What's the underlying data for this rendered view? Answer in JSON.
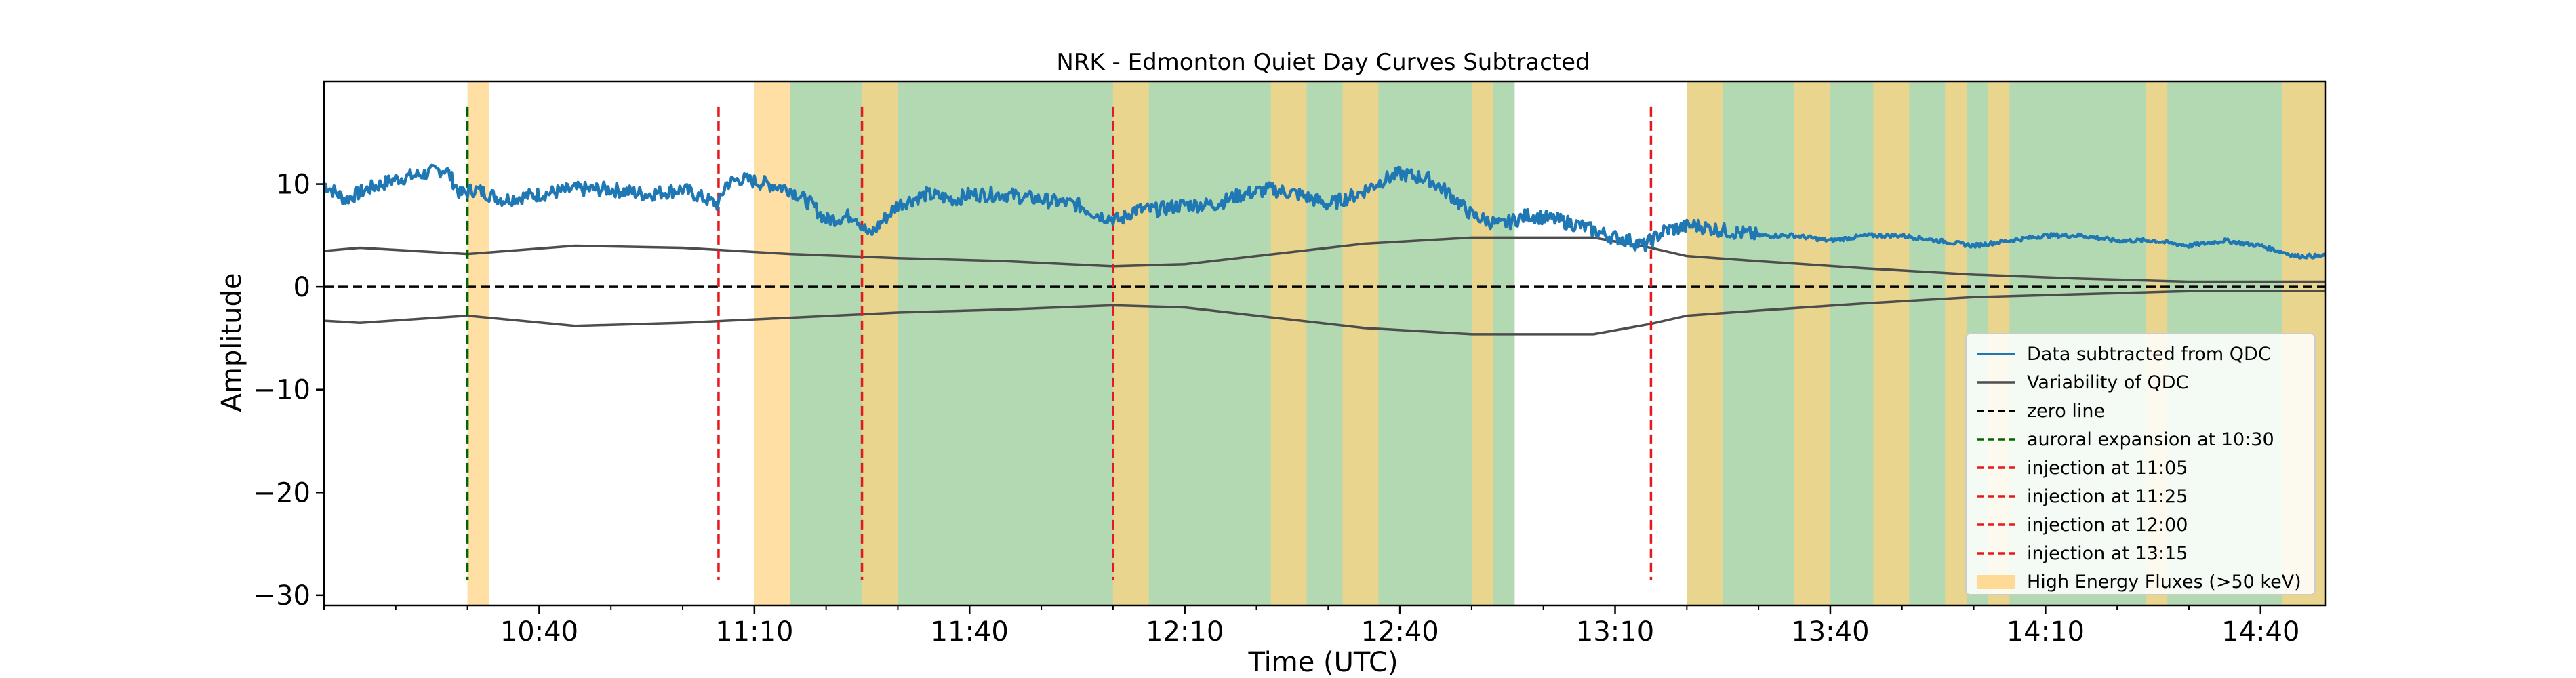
{
  "chart_data": {
    "type": "line",
    "title": "NRK - Edmonton  Quiet Day Curves Subtracted",
    "xlabel": "Time (UTC)",
    "ylabel": "Amplitude",
    "xlim": [
      "10:10",
      "14:49"
    ],
    "ylim": [
      -31,
      20
    ],
    "x_ticks": [
      "10:40",
      "11:10",
      "11:40",
      "12:10",
      "12:40",
      "13:10",
      "13:40",
      "14:10",
      "14:40"
    ],
    "y_ticks": [
      10,
      0,
      -10,
      -20,
      -30
    ],
    "grid": false,
    "legend_position": "lower-right",
    "colors": {
      "data": "#1f77b4",
      "variability": "#4d4d4d",
      "zero": "#000000",
      "expansion": "#006400",
      "injection": "#e41a1c",
      "high_energy": "#ffd27f",
      "green_region": "#b2d9b2",
      "overlap": "#d9bd57"
    },
    "series": [
      {
        "name": "Data subtracted from QDC",
        "style": "solid",
        "x": [
          "10:10",
          "10:13",
          "10:16",
          "10:20",
          "10:24",
          "10:27",
          "10:29",
          "10:31",
          "10:35",
          "10:40",
          "10:45",
          "10:50",
          "10:55",
          "11:00",
          "11:05",
          "11:06",
          "11:08",
          "11:12",
          "11:15",
          "11:18",
          "11:20",
          "11:24",
          "11:26",
          "11:28",
          "11:30",
          "11:34",
          "11:38",
          "11:40",
          "11:45",
          "11:50",
          "11:55",
          "11:58",
          "12:01",
          "12:03",
          "12:06",
          "12:10",
          "12:14",
          "12:18",
          "12:22",
          "12:26",
          "12:30",
          "12:34",
          "12:38",
          "12:40",
          "12:44",
          "12:47",
          "12:50",
          "12:54",
          "12:58",
          "13:02",
          "13:05",
          "13:09",
          "13:12",
          "13:14",
          "13:17",
          "13:21",
          "13:25",
          "13:30",
          "13:35",
          "13:40",
          "13:45",
          "13:50",
          "13:55",
          "14:00",
          "14:05",
          "14:10",
          "14:15",
          "14:20",
          "14:25",
          "14:30",
          "14:35",
          "14:40",
          "14:45",
          "14:49"
        ],
        "y": [
          10,
          8.5,
          9.5,
          10.5,
          11,
          11.5,
          9,
          9.5,
          8.5,
          9,
          9.5,
          9.5,
          9,
          9.5,
          8,
          10,
          10.5,
          10,
          9.5,
          8,
          6.5,
          7,
          5,
          6.5,
          8,
          9,
          8.5,
          9,
          9,
          8.5,
          8,
          7,
          6.5,
          7.5,
          7.5,
          8,
          8,
          9,
          9.5,
          9,
          8,
          9,
          10.5,
          11,
          10.5,
          9,
          7,
          6,
          7,
          6.5,
          6,
          5,
          4.5,
          4,
          5.5,
          6,
          5.5,
          5,
          5,
          4.5,
          5,
          5,
          4.5,
          4,
          4.5,
          5,
          5,
          4.5,
          4.5,
          4,
          4.5,
          4,
          3,
          3
        ]
      },
      {
        "name": "Variability of QDC",
        "style": "solid",
        "x": [
          "10:10",
          "10:15",
          "10:30",
          "10:45",
          "11:00",
          "11:15",
          "11:30",
          "11:45",
          "12:00",
          "12:10",
          "12:20",
          "12:35",
          "12:50",
          "13:00",
          "13:07",
          "13:15",
          "13:20",
          "13:30",
          "13:45",
          "14:00",
          "14:15",
          "14:30",
          "14:49"
        ],
        "y_upper": [
          3.5,
          3.8,
          3.2,
          4,
          3.8,
          3.2,
          2.8,
          2.5,
          2,
          2.2,
          3,
          4.2,
          4.8,
          4.8,
          4.8,
          3.8,
          3,
          2.5,
          1.8,
          1.2,
          0.8,
          0.5,
          0.5
        ],
        "y_lower": [
          -3.3,
          -3.5,
          -2.8,
          -3.8,
          -3.5,
          -3,
          -2.5,
          -2.2,
          -1.8,
          -2,
          -2.8,
          -4,
          -4.6,
          -4.6,
          -4.6,
          -3.6,
          -2.8,
          -2.3,
          -1.6,
          -1,
          -0.7,
          -0.4,
          -0.4
        ]
      }
    ],
    "reference_lines": [
      {
        "name": "zero line",
        "type": "horizontal",
        "y": 0,
        "style": "dashed"
      },
      {
        "name": "auroral expansion at 10:30",
        "type": "vertical",
        "x": "10:30",
        "style": "dashed"
      },
      {
        "name": "injection at 11:05",
        "type": "vertical",
        "x": "11:05",
        "style": "dashed"
      },
      {
        "name": "injection at 11:25",
        "type": "vertical",
        "x": "11:25",
        "style": "dashed"
      },
      {
        "name": "injection at 12:00",
        "type": "vertical",
        "x": "12:00",
        "style": "dashed"
      },
      {
        "name": "injection at 13:15",
        "type": "vertical",
        "x": "13:15",
        "style": "dashed"
      }
    ],
    "ref_line_y_range": [
      -28.5,
      17.5
    ],
    "high_energy_fluxes": {
      "name": "High Energy Fluxes (>50 keV)",
      "intervals": [
        [
          "10:30",
          "10:33"
        ],
        [
          "11:10",
          "11:15"
        ],
        [
          "11:25",
          "11:30"
        ],
        [
          "12:00",
          "12:05"
        ],
        [
          "12:22",
          "12:27"
        ],
        [
          "12:32",
          "12:37"
        ],
        [
          "12:50",
          "12:53"
        ],
        [
          "13:20",
          "13:25"
        ],
        [
          "13:35",
          "13:40"
        ],
        [
          "13:46",
          "13:51"
        ],
        [
          "13:56",
          "13:59"
        ],
        [
          "14:02",
          "14:05"
        ],
        [
          "14:24",
          "14:27"
        ],
        [
          "14:43",
          "14:49"
        ]
      ]
    },
    "green_regions": [
      [
        "11:15",
        "12:56"
      ],
      [
        "13:20",
        "14:49"
      ]
    ],
    "legend": [
      {
        "label": "Data subtracted from QDC",
        "kind": "line",
        "color": "#1f77b4"
      },
      {
        "label": "Variability of QDC",
        "kind": "line",
        "color": "#4d4d4d"
      },
      {
        "label": "zero line",
        "kind": "dash",
        "color": "#000000"
      },
      {
        "label": "auroral expansion at 10:30",
        "kind": "dash",
        "color": "#006400"
      },
      {
        "label": "injection at 11:05",
        "kind": "dash",
        "color": "#e41a1c"
      },
      {
        "label": "injection at 11:25",
        "kind": "dash",
        "color": "#e41a1c"
      },
      {
        "label": "injection at 12:00",
        "kind": "dash",
        "color": "#e41a1c"
      },
      {
        "label": "injection at 13:15",
        "kind": "dash",
        "color": "#e41a1c"
      },
      {
        "label": "High Energy Fluxes (>50 keV)",
        "kind": "patch",
        "color": "#ffd27f"
      }
    ]
  }
}
